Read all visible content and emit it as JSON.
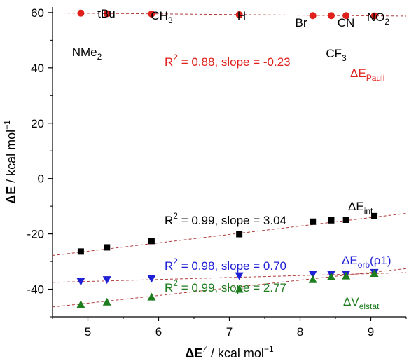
{
  "chart_data": {
    "type": "scatter",
    "xlabel_main": "ΔE",
    "xlabel_sup": "≠",
    "xlabel_rest": " / kcal mol",
    "xlabel_exp": "−1",
    "ylabel_main": "ΔE",
    "ylabel_rest": " / kcal mol",
    "ylabel_exp": "−1",
    "xlim": [
      4.5,
      9.5
    ],
    "ylim": [
      -50,
      62
    ],
    "xticks": [
      5,
      6,
      7,
      8,
      9
    ],
    "yticks": [
      -40,
      -20,
      0,
      20,
      40,
      60
    ],
    "x": [
      4.9,
      5.27,
      5.9,
      7.14,
      8.18,
      8.44,
      8.65,
      9.05
    ],
    "substituents": [
      {
        "main": "NMe",
        "sub": "2"
      },
      {
        "main": "tBu",
        "sub": ""
      },
      {
        "main": "CH",
        "sub": "3"
      },
      {
        "main": "H",
        "sub": ""
      },
      {
        "main": "Br",
        "sub": ""
      },
      {
        "main": "CF",
        "sub": "3"
      },
      {
        "main": "CN",
        "sub": ""
      },
      {
        "main": "NO",
        "sub": "2"
      }
    ],
    "series": [
      {
        "key": "pauli",
        "label_main": "ΔE",
        "label_sub": "Pauli",
        "label_tail": "",
        "color": "#e0201b",
        "marker": "circle",
        "values": [
          59.8,
          59.6,
          59.5,
          59.2,
          58.9,
          58.9,
          58.9,
          58.8
        ],
        "fit": {
          "slope": -0.23,
          "intercept": 60.9
        },
        "stats": {
          "r2_pre": "R",
          "r2_exp": "2",
          "text": " = 0.88, slope = -0.23"
        }
      },
      {
        "key": "int",
        "label_main": "ΔE",
        "label_sub": "int",
        "label_tail": "",
        "color": "#000000",
        "marker": "square",
        "values": [
          -26.4,
          -24.9,
          -22.6,
          -20.1,
          -15.6,
          -15.1,
          -14.9,
          -13.6
        ],
        "fit": {
          "slope": 3.04,
          "intercept": -41.5
        },
        "stats": {
          "r2_pre": "R",
          "r2_exp": "2",
          "text": " = 0.99, slope = 3.04"
        }
      },
      {
        "key": "orb",
        "label_main": "ΔE",
        "label_sub": "orb",
        "label_tail": "(ρ1)",
        "color": "#1f1fd6",
        "marker": "triangle-down",
        "values": [
          -37.2,
          -36.6,
          -36.2,
          -35.2,
          -34.6,
          -34.6,
          -34.6,
          -34.0
        ],
        "fit": {
          "slope": 0.7,
          "intercept": -40.7
        },
        "stats": {
          "r2_pre": "R",
          "r2_exp": "2",
          "text": " = 0.98, slope = 0.70"
        }
      },
      {
        "key": "elstat",
        "label_main": "ΔV",
        "label_sub": "elstat",
        "label_tail": "",
        "color": "#1e7d1e",
        "marker": "triangle-up",
        "values": [
          -45.5,
          -44.6,
          -42.8,
          -40.0,
          -36.5,
          -35.5,
          -35.2,
          -34.3
        ],
        "fit": {
          "slope": 2.77,
          "intercept": -58.9
        },
        "stats": {
          "r2_pre": "R",
          "r2_exp": "2",
          "text": " = 0.99, slope = 2.77"
        }
      }
    ],
    "fit_line_color": "#b23a3a",
    "grid": false,
    "legend": "inline labels"
  }
}
